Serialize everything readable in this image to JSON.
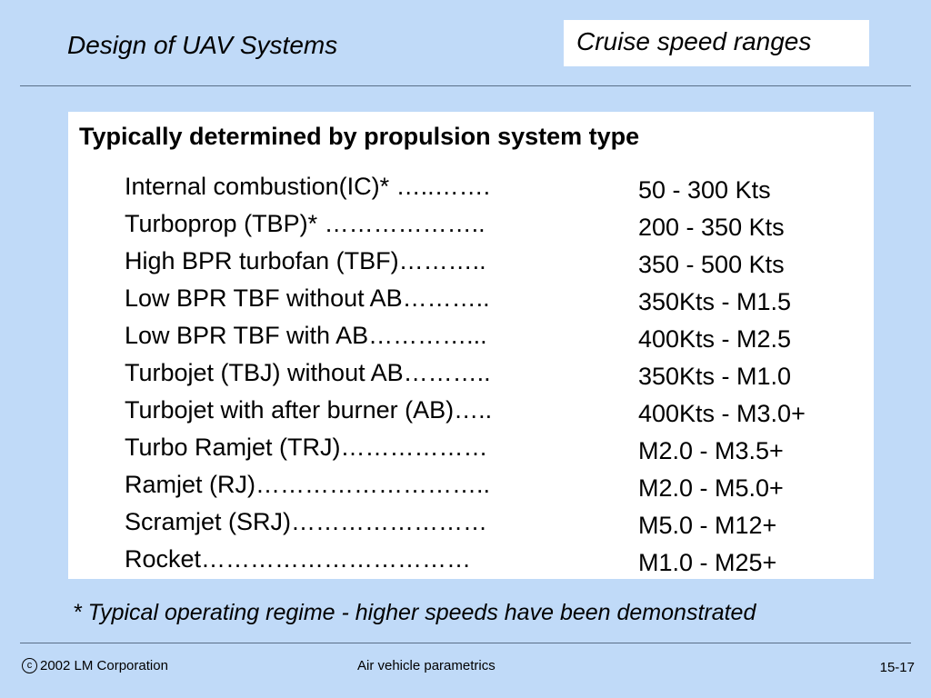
{
  "header": {
    "deck_title": "Design of UAV Systems",
    "slide_title": "Cruise speed ranges"
  },
  "content": {
    "heading": "Typically determined by propulsion system type",
    "rows": [
      {
        "propulsion": "Internal combustion(IC)* …..…….",
        "speed": "50 - 300 Kts"
      },
      {
        "propulsion": "Turboprop (TBP)* ………………..",
        "speed": "200 - 350 Kts"
      },
      {
        "propulsion": "High BPR turbofan (TBF)………..",
        "speed": "350 - 500 Kts"
      },
      {
        "propulsion": "Low BPR TBF without AB………..",
        "speed": "350Kts - M1.5"
      },
      {
        "propulsion": "Low BPR TBF with AB…………...",
        "speed": "400Kts - M2.5"
      },
      {
        "propulsion": "Turbojet (TBJ) without AB………..",
        "speed": "350Kts - M1.0"
      },
      {
        "propulsion": "Turbojet with after burner (AB)…..",
        "speed": "400Kts - M3.0+"
      },
      {
        "propulsion": "Turbo Ramjet (TRJ)………………",
        "speed": "M2.0 - M3.5+"
      },
      {
        "propulsion": "Ramjet (RJ)………………………..",
        "speed": "M2.0 - M5.0+"
      },
      {
        "propulsion": "Scramjet (SRJ)……………………",
        "speed": "M5.0 - M12+"
      },
      {
        "propulsion": "Rocket……………………………",
        "speed": "M1.0 - M25+"
      }
    ]
  },
  "footnote": "* Typical operating regime - higher speeds have been demonstrated",
  "footer": {
    "copyright_symbol": "c",
    "copyright_text": "2002 LM Corporation",
    "center_text": "Air vehicle parametrics",
    "page_number": "15-17"
  },
  "colors": {
    "background": "#c0daf8",
    "panel": "#ffffff",
    "rule": "#5a6f88"
  }
}
